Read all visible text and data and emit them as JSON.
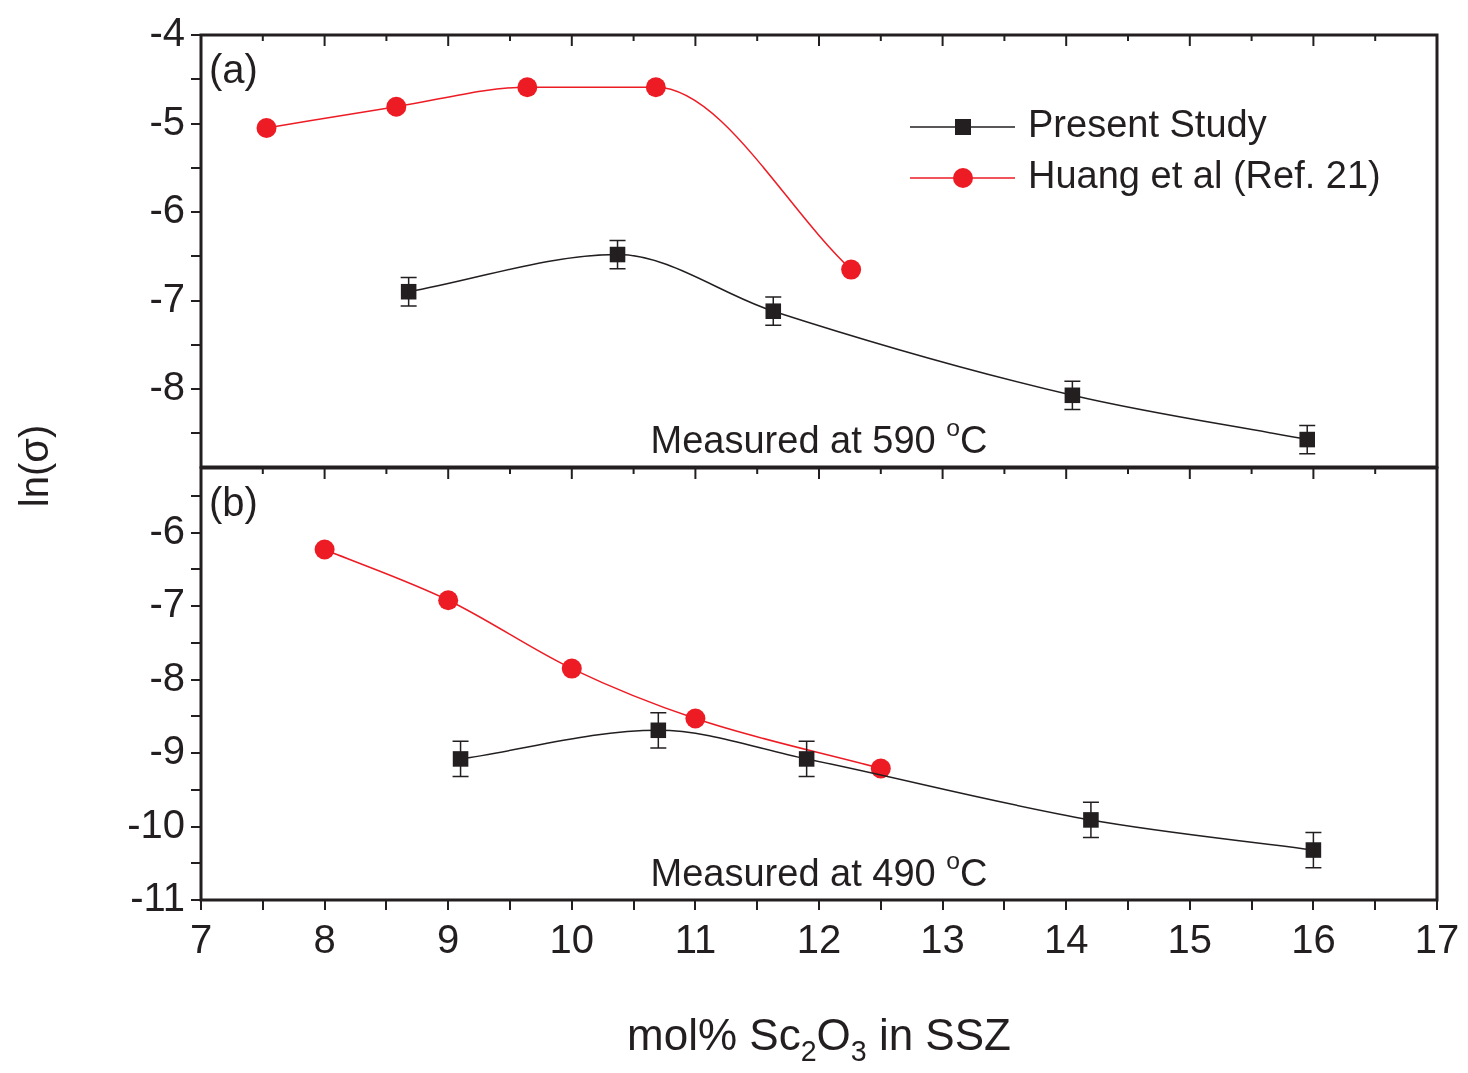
{
  "chart_data": [
    {
      "type": "line",
      "ylabel": "ln(σ)",
      "annotations": [
        "(a)",
        "Measured at 590 $^{o}$C"
      ],
      "xlim": [
        7,
        17
      ],
      "xticks": [
        7,
        {
          "value": 7.5,
          "label": null
        },
        8,
        {
          "value": 8.5,
          "label": null
        },
        9,
        {
          "value": 9.5,
          "label": null
        },
        10,
        {
          "value": 10.5,
          "label": null
        },
        11,
        {
          "value": 11.5,
          "label": null
        },
        12,
        {
          "value": 12.5,
          "label": null
        },
        13,
        {
          "value": 13.5,
          "label": null
        },
        14,
        {
          "value": 14.5,
          "label": null
        },
        15,
        {
          "value": 15.5,
          "label": null
        },
        16,
        {
          "value": 16.5,
          "label": null
        },
        17
      ],
      "ylim": [
        -8.88,
        -4
      ],
      "yticks": [
        -4,
        {
          "value": -4.5,
          "label": null
        },
        -5,
        {
          "value": -5.5,
          "label": null
        },
        -6,
        {
          "value": -6.5,
          "label": null
        },
        -7,
        {
          "value": -7.5,
          "label": null
        },
        -8,
        {
          "value": -8.5,
          "label": null
        }
      ],
      "tick_labels": "y",
      "grid": false,
      "legend": "top right",
      "line_style": "solid",
      "series": [
        {
          "name": "Present Study",
          "color": "#231f20",
          "marker": "square",
          "x": [
            8.68,
            10.37,
            11.63,
            14.05,
            15.95
          ],
          "values": [
            -6.9,
            -6.48,
            -7.12,
            -8.07,
            -8.57
          ],
          "errors": [
            0.16,
            0.16,
            0.16,
            0.16,
            0.16
          ]
        },
        {
          "name": "Huang et al (Ref. 21)",
          "color": "#ed1c24",
          "marker": "circle",
          "x": [
            7.53,
            8.58,
            9.64,
            10.68,
            12.26
          ],
          "values": [
            -5.05,
            -4.81,
            -4.59,
            -4.59,
            -6.65
          ]
        }
      ]
    },
    {
      "type": "line",
      "xlabel": "mol% Sc$_{2}$O$_{3}$ in SSZ",
      "annotations": [
        "(b)",
        "Measured at 490 $^{o}$C"
      ],
      "xlim": [
        7,
        17
      ],
      "xticks": [
        7,
        {
          "value": 7.5,
          "label": null
        },
        8,
        {
          "value": 8.5,
          "label": null
        },
        9,
        {
          "value": 9.5,
          "label": null
        },
        10,
        {
          "value": 10.5,
          "label": null
        },
        11,
        {
          "value": 11.5,
          "label": null
        },
        12,
        {
          "value": 12.5,
          "label": null
        },
        13,
        {
          "value": 13.5,
          "label": null
        },
        14,
        {
          "value": 14.5,
          "label": null
        },
        15,
        {
          "value": 15.5,
          "label": null
        },
        16,
        {
          "value": 16.5,
          "label": null
        },
        17
      ],
      "ylim": [
        -11,
        -5.12
      ],
      "yticks": [
        {
          "value": -5.5,
          "label": null
        },
        -6,
        {
          "value": -6.5,
          "label": null
        },
        -7,
        {
          "value": -7.5,
          "label": null
        },
        -8,
        {
          "value": -8.5,
          "label": null
        },
        -9,
        {
          "value": -9.5,
          "label": null
        },
        -10,
        {
          "value": -10.5,
          "label": null
        },
        -11
      ],
      "grid": false,
      "legend": false,
      "line_style": "solid",
      "series": [
        {
          "color": "#231f20",
          "marker": "square",
          "x": [
            9.1,
            10.7,
            11.9,
            14.2,
            16.0
          ],
          "values": [
            -9.08,
            -8.69,
            -9.08,
            -9.91,
            -10.32
          ],
          "errors": [
            0.24,
            0.24,
            0.24,
            0.24,
            0.24
          ]
        },
        {
          "color": "#ed1c24",
          "marker": "circle",
          "x": [
            8.0,
            9.0,
            10.0,
            11.0,
            12.5
          ],
          "values": [
            -6.23,
            -6.92,
            -7.85,
            -8.53,
            -9.21
          ]
        }
      ]
    }
  ]
}
